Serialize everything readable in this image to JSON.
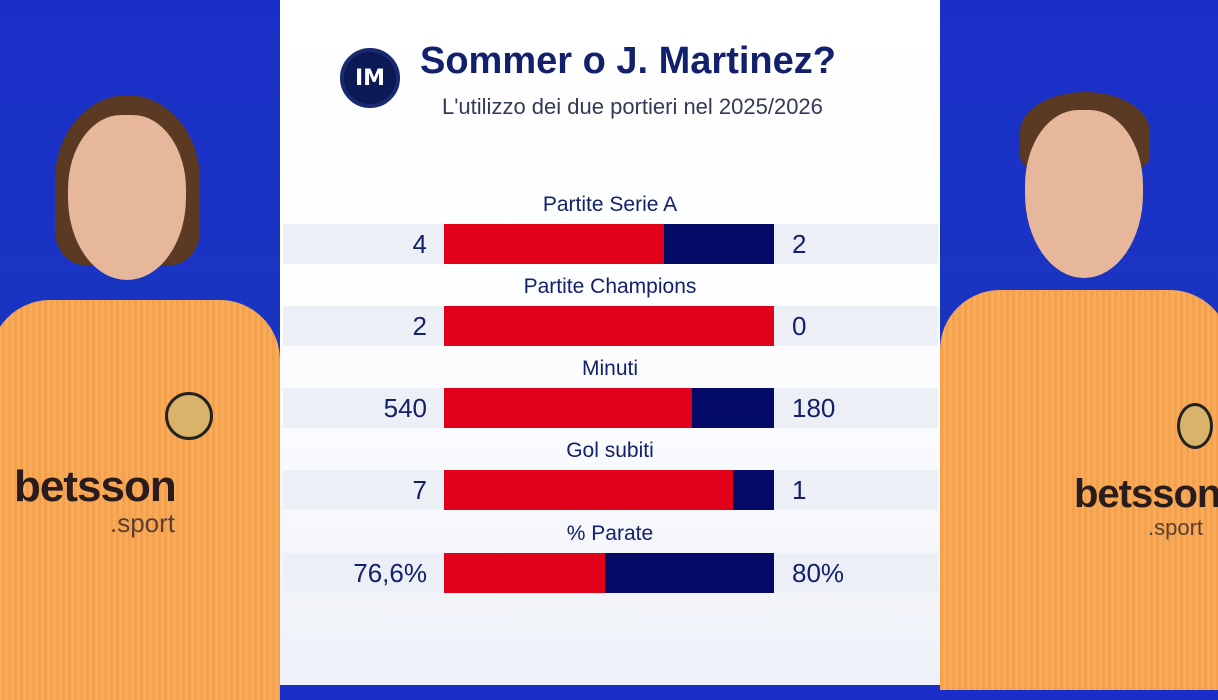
{
  "header": {
    "title": "Sommer o J. Martinez?",
    "subtitle": "L'utilizzo dei due portieri nel 2025/2026",
    "logo_text": "IM"
  },
  "sponsor": {
    "name": "betsson",
    "suffix": ".sport"
  },
  "colors": {
    "left": "#e0001a",
    "right": "#040b66",
    "background": "#1a2fc8"
  },
  "chart_data": {
    "type": "bar",
    "orientation": "horizontal-stacked-comparison",
    "title": "Sommer o J. Martinez?",
    "subtitle": "L'utilizzo dei due portieri nel 2025/2026",
    "categories": [
      "Partite Serie A",
      "Partite Champions",
      "Minuti",
      "Gol subiti",
      "% Parate"
    ],
    "series": [
      {
        "name": "Sommer",
        "values": [
          4,
          2,
          540,
          7,
          76.6
        ],
        "labels": [
          "4",
          "2",
          "540",
          "7",
          "76,6%"
        ]
      },
      {
        "name": "J. Martinez",
        "values": [
          2,
          0,
          180,
          1,
          80
        ],
        "labels": [
          "2",
          "0",
          "180",
          "1",
          "80%"
        ]
      }
    ]
  }
}
